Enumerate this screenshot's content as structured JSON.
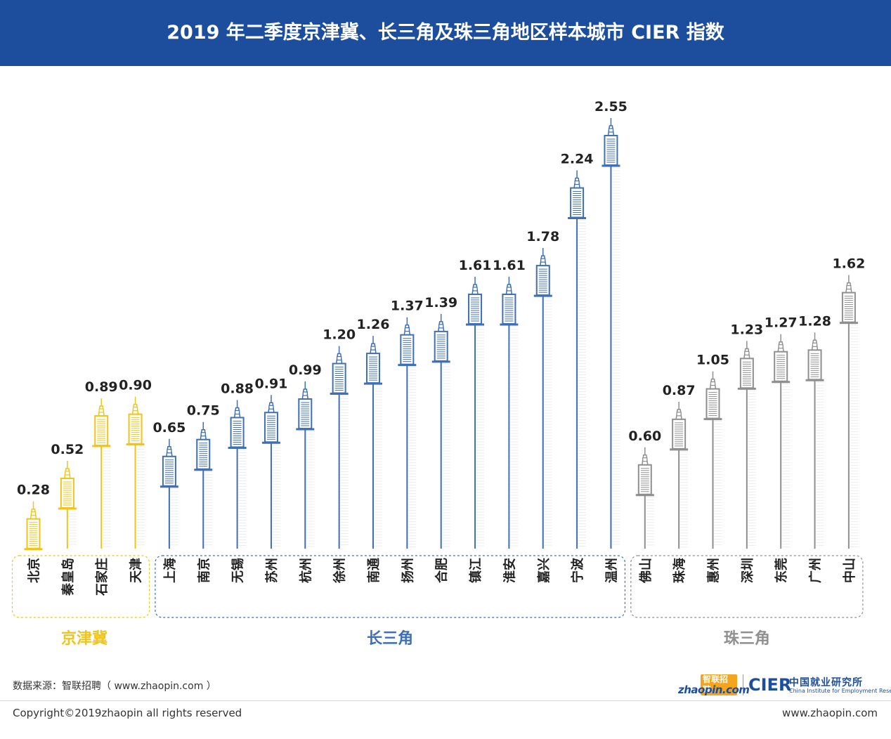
{
  "header": {
    "title": "2019 年二季度京津冀、长三角及珠三角地区样本城市 CIER 指数"
  },
  "chart_data": {
    "type": "bar",
    "title": "2019 年二季度京津冀、长三角及珠三角地区样本城市 CIER 指数",
    "xlabel": "",
    "ylabel": "",
    "ylim": [
      0,
      2.6
    ],
    "grid": false,
    "groups": [
      {
        "name": "京津冀",
        "color": "#f0c419",
        "categories": [
          "北京",
          "秦皇岛",
          "石家庄",
          "天津"
        ],
        "values": [
          0.28,
          0.52,
          0.89,
          0.9
        ]
      },
      {
        "name": "长三角",
        "color": "#3f6fb5",
        "categories": [
          "上海",
          "南京",
          "无锡",
          "苏州",
          "杭州",
          "徐州",
          "南通",
          "扬州",
          "合肥",
          "镇江",
          "淮安",
          "嘉兴",
          "宁波",
          "温州"
        ],
        "values": [
          0.65,
          0.75,
          0.88,
          0.91,
          0.99,
          1.2,
          1.26,
          1.37,
          1.39,
          1.61,
          1.61,
          1.78,
          2.24,
          2.55
        ]
      },
      {
        "name": "珠三角",
        "color": "#8f8f8f",
        "categories": [
          "佛山",
          "珠海",
          "惠州",
          "深圳",
          "东莞",
          "广州",
          "中山"
        ],
        "values": [
          0.6,
          0.87,
          1.05,
          1.23,
          1.27,
          1.28,
          1.62
        ]
      }
    ]
  },
  "footer": {
    "source": "数据来源：智联招聘（ www.zhaopin.com ）",
    "copyright": "Copyright©2019zhaopin all rights reserved",
    "website": "www.zhaopin.com",
    "logo_zhaopin_cn": "智联招聘",
    "logo_zhaopin_en": "zhaopin.com",
    "logo_cier": "CIER",
    "logo_cier_cn": "中国就业研究所",
    "logo_cier_en": "China Institute for Employment Research"
  },
  "colors": {
    "header_bg": "#1d4e9e",
    "jingjinji": "#f0c419",
    "changsanjiao": "#3f6fb5",
    "zhusanjiao": "#8f8f8f"
  }
}
